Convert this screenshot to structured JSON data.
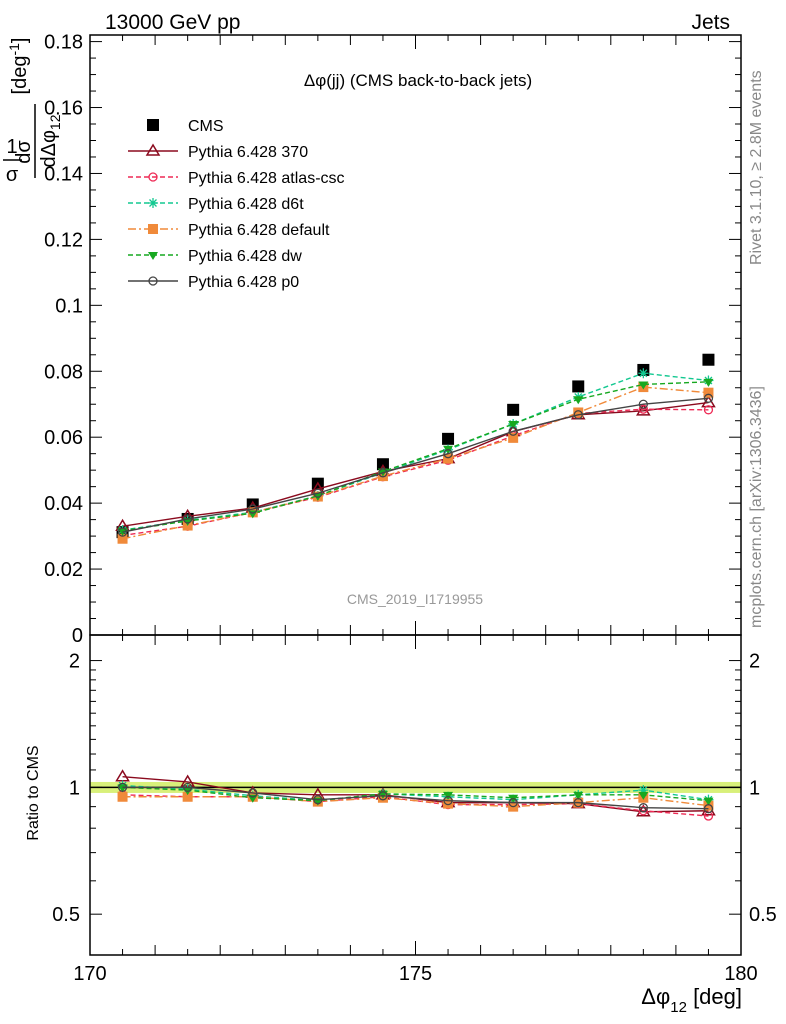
{
  "header": {
    "left": "13000 GeV pp",
    "right": "Jets"
  },
  "side_labels": {
    "rivet": "Rivet 3.1.10, ≥ 2.8M events",
    "mcplots": "mcplots.cern.ch [arXiv:1306.3436]"
  },
  "main_plot": {
    "title": "Δφ(jj) (CMS back-to-back jets)",
    "ylabel": "1/σ dσ/dΔφ₁₂ [deg⁻¹]",
    "watermark": "CMS_2019_I1719955",
    "ylim": [
      0,
      0.182
    ],
    "yticks": [
      0,
      0.02,
      0.04,
      0.06,
      0.08,
      0.1,
      0.12,
      0.14,
      0.16,
      0.18
    ],
    "ytick_labels": [
      "0",
      "0.02",
      "0.04",
      "0.06",
      "0.08",
      "0.1",
      "0.12",
      "0.14",
      "0.16",
      "0.18"
    ]
  },
  "ratio_plot": {
    "ylabel": "Ratio to CMS",
    "ylim": [
      0.4,
      2.3
    ],
    "log_scale": true,
    "yticks": [
      0.5,
      1,
      2
    ],
    "ytick_labels": [
      "0.5",
      "1",
      "2"
    ],
    "band": [
      0.97,
      1.03
    ]
  },
  "x_axis": {
    "label": "Δφ₁₂ [deg]",
    "xlim": [
      170,
      180
    ],
    "ticks": [
      170,
      175,
      180
    ],
    "tick_labels": [
      "170",
      "175",
      "180"
    ]
  },
  "colors": {
    "cms": "#000000",
    "p370": "#8b0a1e",
    "atlas_csc": "#ee2a55",
    "d6t": "#12c890",
    "default": "#f08a3a",
    "dw": "#17a820",
    "p0": "#444444",
    "band": "#d8f07a"
  },
  "chart_data": {
    "type": "scatter",
    "x": [
      170.5,
      171.5,
      172.5,
      173.5,
      174.5,
      175.5,
      176.5,
      177.5,
      178.5,
      179.5
    ],
    "series": [
      {
        "name": "CMS",
        "key": "cms",
        "marker": "square",
        "line": "none",
        "values": [
          0.0312,
          0.0352,
          0.0396,
          0.0459,
          0.0518,
          0.0595,
          0.0683,
          0.0754,
          0.0804,
          0.0835
        ]
      },
      {
        "name": "Pythia 6.428 370",
        "key": "p370",
        "marker": "triangle-open",
        "line": "solid",
        "values": [
          0.033,
          0.036,
          0.0385,
          0.0443,
          0.0496,
          0.0535,
          0.0617,
          0.0668,
          0.068,
          0.0705
        ],
        "ratio": [
          1.06,
          1.03,
          0.97,
          0.96,
          0.96,
          0.92,
          0.92,
          0.915,
          0.875,
          0.88
        ]
      },
      {
        "name": "Pythia 6.428 atlas-csc",
        "key": "atlas_csc",
        "marker": "circle-open",
        "line": "dash",
        "values": [
          0.0302,
          0.033,
          0.0372,
          0.0418,
          0.048,
          0.053,
          0.0604,
          0.0672,
          0.0685,
          0.0683
        ],
        "ratio": [
          0.96,
          0.95,
          0.95,
          0.925,
          0.95,
          0.91,
          0.91,
          0.915,
          0.88,
          0.855
        ]
      },
      {
        "name": "Pythia 6.428 d6t",
        "key": "d6t",
        "marker": "star",
        "line": "dash",
        "values": [
          0.0318,
          0.0348,
          0.0372,
          0.0422,
          0.0492,
          0.0562,
          0.064,
          0.0722,
          0.0794,
          0.0772
        ],
        "ratio": [
          1.01,
          0.99,
          0.955,
          0.93,
          0.965,
          0.95,
          0.935,
          0.96,
          0.985,
          0.935
        ]
      },
      {
        "name": "Pythia 6.428 default",
        "key": "default",
        "marker": "square",
        "line": "dashdot",
        "values": [
          0.0292,
          0.0332,
          0.0372,
          0.042,
          0.0482,
          0.0535,
          0.0598,
          0.0675,
          0.0752,
          0.0735
        ],
        "ratio": [
          0.95,
          0.95,
          0.95,
          0.925,
          0.945,
          0.915,
          0.9,
          0.92,
          0.945,
          0.905
        ]
      },
      {
        "name": "Pythia 6.428 dw",
        "key": "dw",
        "marker": "triangle-down",
        "line": "dash",
        "values": [
          0.0316,
          0.0346,
          0.0369,
          0.0422,
          0.0496,
          0.0565,
          0.064,
          0.0715,
          0.076,
          0.0768
        ],
        "ratio": [
          1.0,
          0.985,
          0.945,
          0.93,
          0.965,
          0.96,
          0.945,
          0.96,
          0.96,
          0.93
        ]
      },
      {
        "name": "Pythia 6.428 p0",
        "key": "p0",
        "marker": "circle-open",
        "line": "solid",
        "values": [
          0.0312,
          0.0352,
          0.0382,
          0.043,
          0.0492,
          0.055,
          0.0618,
          0.0668,
          0.07,
          0.0718
        ],
        "ratio": [
          1.0,
          1.0,
          0.97,
          0.935,
          0.955,
          0.93,
          0.92,
          0.92,
          0.895,
          0.89
        ]
      }
    ]
  }
}
